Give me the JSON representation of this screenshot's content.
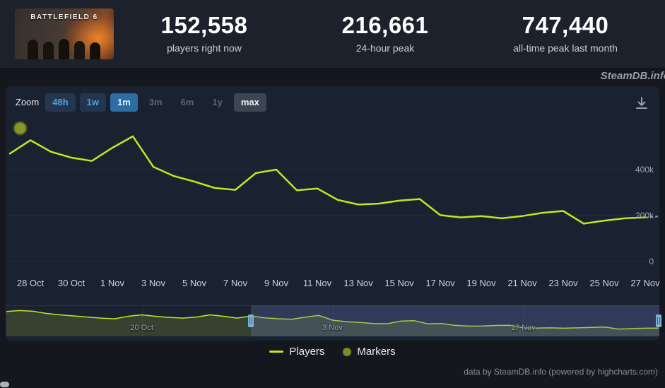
{
  "game": {
    "capsule_text": "BATTLEFIELD 6"
  },
  "header": {
    "stats": [
      {
        "value": "152,558",
        "label": "players right now"
      },
      {
        "value": "216,661",
        "label": "24-hour peak"
      },
      {
        "value": "747,440",
        "label": "all-time peak last month"
      }
    ]
  },
  "watermark": "SteamDB.info",
  "toolbar": {
    "zoom_label": "Zoom",
    "options": [
      {
        "label": "48h",
        "state": "normal"
      },
      {
        "label": "1w",
        "state": "normal"
      },
      {
        "label": "1m",
        "state": "selected"
      },
      {
        "label": "3m",
        "state": "disabled"
      },
      {
        "label": "6m",
        "state": "disabled"
      },
      {
        "label": "1y",
        "state": "disabled"
      },
      {
        "label": "max",
        "state": "max"
      }
    ]
  },
  "chart_data": {
    "type": "line",
    "ylim": [
      0,
      600000
    ],
    "grid": "horizontal",
    "legend_position": "bottom-center",
    "y_ticks": [
      {
        "label": "400k",
        "value": 400000
      },
      {
        "label": "200k",
        "value": 200000
      },
      {
        "label": "0",
        "value": 0
      }
    ],
    "x_labels": [
      "28 Oct",
      "30 Oct",
      "1 Nov",
      "3 Nov",
      "5 Nov",
      "7 Nov",
      "9 Nov",
      "11 Nov",
      "13 Nov",
      "15 Nov",
      "17 Nov",
      "19 Nov",
      "21 Nov",
      "23 Nov",
      "25 Nov",
      "27 Nov"
    ],
    "series": [
      {
        "name": "Players",
        "color": "#c3e61c",
        "dates": [
          "27 Oct",
          "28 Oct",
          "29 Oct",
          "30 Oct",
          "31 Oct",
          "1 Nov",
          "2 Nov",
          "3 Nov",
          "4 Nov",
          "5 Nov",
          "6 Nov",
          "7 Nov",
          "8 Nov",
          "9 Nov",
          "10 Nov",
          "11 Nov",
          "12 Nov",
          "13 Nov",
          "14 Nov",
          "15 Nov",
          "16 Nov",
          "17 Nov",
          "18 Nov",
          "19 Nov",
          "20 Nov",
          "21 Nov",
          "22 Nov",
          "23 Nov",
          "24 Nov",
          "25 Nov",
          "26 Nov",
          "27 Nov"
        ],
        "values": [
          470000,
          528000,
          478000,
          452000,
          438000,
          495000,
          545000,
          412000,
          372000,
          348000,
          320000,
          312000,
          385000,
          400000,
          310000,
          318000,
          268000,
          248000,
          252000,
          265000,
          272000,
          202000,
          192000,
          198000,
          188000,
          198000,
          212000,
          220000,
          165000,
          178000,
          188000,
          192000
        ]
      }
    ],
    "partial_last_day_dashed": true,
    "marker_annotation": {
      "name": "Markers",
      "day_index": 0.5,
      "value": 580000,
      "color": "#87962a"
    },
    "navigator": {
      "total_days": 48,
      "selection_start_day": 18,
      "labels": [
        {
          "text": "20 Oct",
          "day": 10
        },
        {
          "text": "3 Nov",
          "day": 24
        },
        {
          "text": "17 Nov",
          "day": 38
        }
      ],
      "values": [
        650000,
        680000,
        660000,
        600000,
        560000,
        530000,
        500000,
        470000,
        450000,
        520000,
        560000,
        520000,
        490000,
        470000,
        500000,
        560000,
        520000,
        470000,
        528000,
        478000,
        452000,
        438000,
        495000,
        545000,
        412000,
        372000,
        348000,
        320000,
        312000,
        385000,
        400000,
        310000,
        318000,
        268000,
        248000,
        252000,
        265000,
        272000,
        202000,
        192000,
        198000,
        188000,
        198000,
        212000,
        220000,
        165000,
        178000,
        188000,
        192000
      ]
    }
  },
  "legend": {
    "items": [
      {
        "label": "Players",
        "marker": "line",
        "color": "#c3e61c"
      },
      {
        "label": "Markers",
        "marker": "circle",
        "color": "#7c8a24"
      }
    ]
  },
  "credits": "data by SteamDB.info (powered by highcharts.com)"
}
